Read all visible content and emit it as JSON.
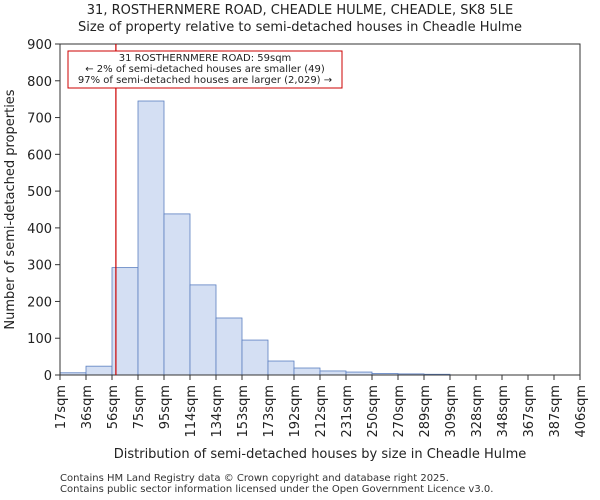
{
  "chart_data": {
    "type": "bar",
    "title_line1": "31, ROSTHERNMERE ROAD, CHEADLE HULME, CHEADLE, SK8 5LE",
    "title_line2": "Size of property relative to semi-detached houses in Cheadle Hulme",
    "xlabel": "Distribution of semi-detached houses by size in Cheadle Hulme",
    "ylabel": "Number of semi-detached properties",
    "tick_labels": [
      "17sqm",
      "36sqm",
      "56sqm",
      "75sqm",
      "95sqm",
      "114sqm",
      "134sqm",
      "153sqm",
      "173sqm",
      "192sqm",
      "212sqm",
      "231sqm",
      "250sqm",
      "270sqm",
      "289sqm",
      "309sqm",
      "328sqm",
      "348sqm",
      "367sqm",
      "387sqm",
      "406sqm"
    ],
    "values": [
      6,
      24,
      292,
      745,
      438,
      245,
      155,
      95,
      38,
      19,
      11,
      8,
      4,
      3,
      2,
      0,
      0,
      0,
      0,
      0
    ],
    "ylim": [
      0,
      900
    ],
    "yticks": [
      0,
      100,
      200,
      300,
      400,
      500,
      600,
      700,
      800,
      900
    ],
    "bar_fill": "#d4dff3",
    "bar_edge": "#5b7fc0",
    "marker": {
      "bin_position": 2.15,
      "color": "#cc0000",
      "label_line1": "31 ROSTHERNMERE ROAD: 59sqm",
      "label_line2": "← 2% of semi-detached houses are smaller (49)",
      "label_line3": "97% of semi-detached houses are larger (2,029) →"
    }
  },
  "footer": {
    "line1": "Contains HM Land Registry data © Crown copyright and database right 2025.",
    "line2": "Contains public sector information licensed under the Open Government Licence v3.0."
  }
}
